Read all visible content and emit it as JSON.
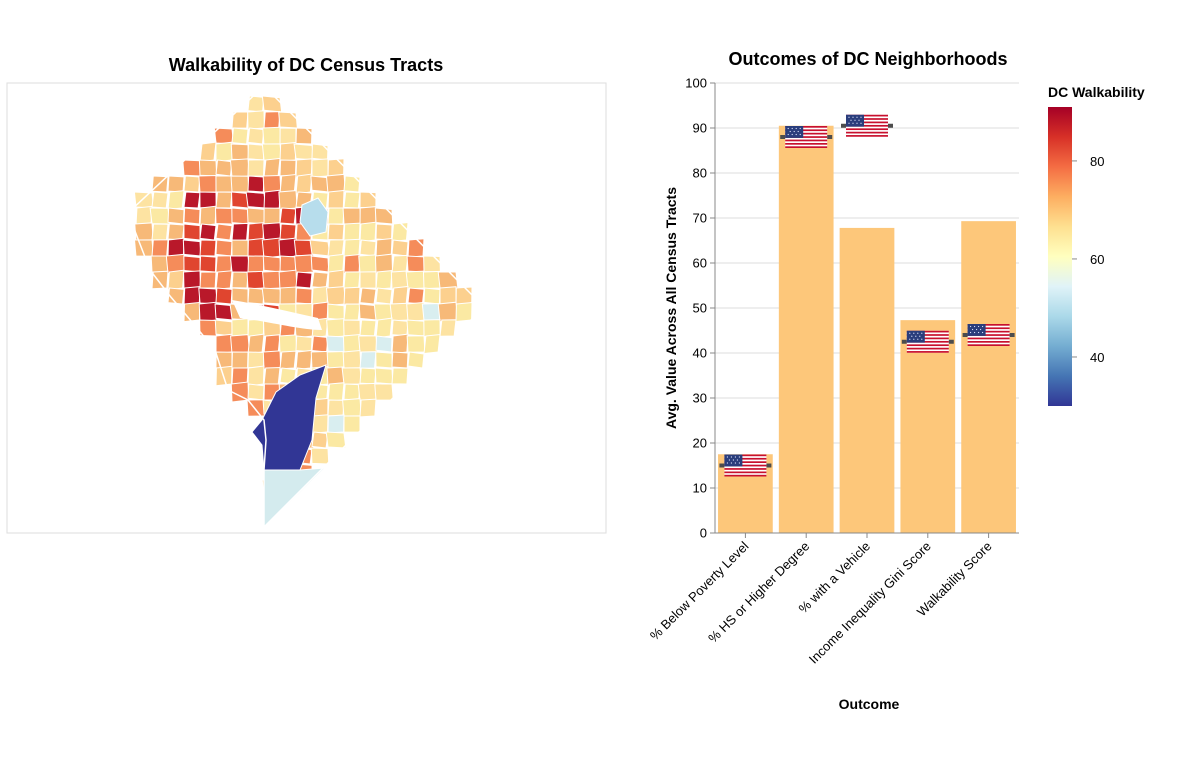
{
  "map": {
    "title": "Walkability of DC Census Tracts"
  },
  "legend": {
    "title": "DC Walkability",
    "ticks": [
      "80",
      "60",
      "40"
    ],
    "domain": [
      30,
      91
    ],
    "tick_values": [
      80,
      60,
      40
    ],
    "colors": [
      "#313695",
      "#4575b4",
      "#74add1",
      "#abd9e9",
      "#e0f3f8",
      "#ffffbf",
      "#fee090",
      "#fdae61",
      "#f46d43",
      "#d73027",
      "#a50026"
    ]
  },
  "chart_data": {
    "type": "bar",
    "title": "Outcomes of DC Neighborhoods",
    "xlabel": "Outcome",
    "ylabel": "Avg. Value Across All Census Tracts",
    "ylim": [
      0,
      100
    ],
    "yticks": [
      0,
      10,
      20,
      30,
      40,
      50,
      60,
      70,
      80,
      90,
      100
    ],
    "grid": true,
    "categories": [
      "% Below Poverty Level",
      "% HS or Higher Degree",
      "% with a Vehicle",
      "Income Inequality Gini Score",
      "Walkability Score"
    ],
    "values": [
      17.5,
      90.5,
      67.8,
      47.3,
      69.3
    ],
    "us_reference": [
      15,
      88,
      90.5,
      42.5,
      44
    ],
    "bar_color": "#fdc77a",
    "reference_color": "#4d4d4d"
  }
}
